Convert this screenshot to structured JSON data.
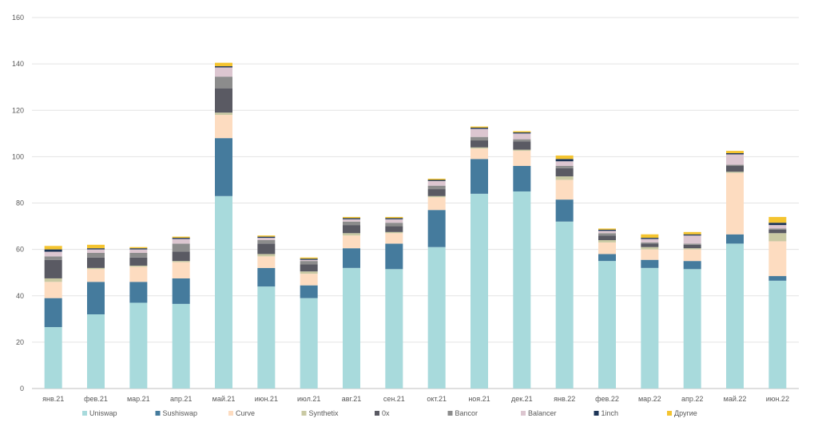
{
  "chart_data": {
    "type": "bar",
    "stacked": true,
    "title": "",
    "xlabel": "",
    "ylabel": "",
    "ylim": [
      0,
      160
    ],
    "yticks": [
      0,
      20,
      40,
      60,
      80,
      100,
      120,
      140,
      160
    ],
    "grid": true,
    "legend_position": "bottom",
    "categories": [
      "янв.21",
      "фев.21",
      "мар.21",
      "апр.21",
      "май.21",
      "июн.21",
      "июл.21",
      "авг.21",
      "сен.21",
      "окт.21",
      "ноя.21",
      "дек.21",
      "янв.22",
      "фев.22",
      "мар.22",
      "апр.22",
      "май.22",
      "июн.22"
    ],
    "series": [
      {
        "name": "Uniswap",
        "color": "#a8dadc",
        "values": [
          26.5,
          32,
          37,
          36.5,
          83,
          44,
          39,
          52,
          51.5,
          61,
          84,
          85,
          72,
          55,
          52,
          51.5,
          62.5,
          46.5
        ]
      },
      {
        "name": "Sushiswap",
        "color": "#457b9d",
        "values": [
          12.5,
          14,
          9,
          11,
          25,
          8,
          5.5,
          8.5,
          11,
          16,
          15,
          11,
          9.5,
          3,
          3.5,
          3.5,
          4,
          2
        ]
      },
      {
        "name": "Curve",
        "color": "#fddcc0",
        "values": [
          7,
          5.5,
          6.5,
          7,
          10,
          5,
          5,
          5.5,
          4.5,
          5.5,
          4.5,
          6.5,
          8.5,
          5,
          4.5,
          5,
          26.5,
          15
        ]
      },
      {
        "name": "Synthetix",
        "color": "#c9c9a3",
        "values": [
          1.5,
          0.5,
          0.5,
          0.5,
          1,
          1,
          1,
          1,
          0.5,
          0.5,
          0.5,
          0.5,
          1.5,
          1,
          1,
          0.5,
          0.5,
          3.5
        ]
      },
      {
        "name": "0x",
        "color": "#5a5a63",
        "values": [
          8,
          4.5,
          3.5,
          4,
          10.5,
          4.5,
          3,
          3.5,
          2.5,
          3,
          3,
          3.5,
          3.5,
          2,
          1.5,
          1.5,
          2.5,
          1.5
        ]
      },
      {
        "name": "Bancor",
        "color": "#8c8c8c",
        "values": [
          1.5,
          2,
          2,
          3.5,
          5,
          1.5,
          1.5,
          1.5,
          1.5,
          1.5,
          1.5,
          1,
          1,
          1,
          0.5,
          0.5,
          0.5,
          0.5
        ]
      },
      {
        "name": "Balancer",
        "color": "#dcc6d0",
        "values": [
          2,
          1.5,
          1.5,
          2,
          4,
          1,
          0.5,
          1,
          1.5,
          2,
          3.5,
          2.5,
          2,
          1,
          1.5,
          3.5,
          4.5,
          1.5
        ]
      },
      {
        "name": "1inch",
        "color": "#1d3557",
        "values": [
          1,
          0.5,
          0.5,
          0.5,
          0.5,
          0.5,
          0.5,
          0.5,
          0.5,
          0.5,
          0.5,
          0.5,
          1,
          0.5,
          0.5,
          0.5,
          0.5,
          1
        ]
      },
      {
        "name": "Другие",
        "color": "#f4c430",
        "values": [
          1.5,
          1.5,
          0.5,
          0.5,
          1.5,
          0.5,
          0.5,
          0.5,
          0.5,
          0.5,
          0.5,
          0.5,
          1.5,
          0.5,
          1.5,
          1,
          1,
          2.5
        ]
      }
    ]
  }
}
